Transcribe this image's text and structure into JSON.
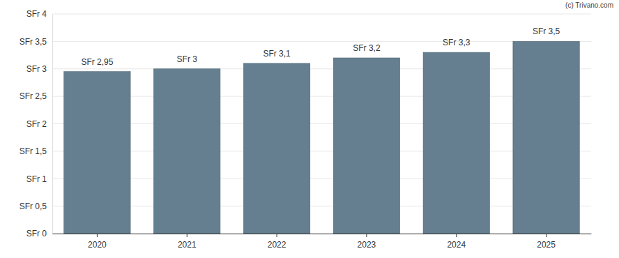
{
  "chart_data": {
    "type": "bar",
    "annotations": [
      "(c) Trivano.com"
    ],
    "categories": [
      "2020",
      "2021",
      "2022",
      "2023",
      "2024",
      "2025"
    ],
    "values": [
      2.95,
      3,
      3.1,
      3.2,
      3.3,
      3.5
    ],
    "value_labels": [
      "SFr 2,95",
      "SFr 3",
      "SFr 3,1",
      "SFr 3,2",
      "SFr 3,3",
      "SFr 3,5"
    ],
    "data_labels": true,
    "color": "#657f91",
    "ylim": [
      0,
      4
    ],
    "yticks": [
      {
        "value": 0,
        "label": "SFr 0"
      },
      {
        "value": 0.5,
        "label": "SFr 0,5"
      },
      {
        "value": 1,
        "label": "SFr 1"
      },
      {
        "value": 1.5,
        "label": "SFr 1,5"
      },
      {
        "value": 2,
        "label": "SFr 2"
      },
      {
        "value": 2.5,
        "label": "SFr 2,5"
      },
      {
        "value": 3,
        "label": "SFr 3"
      },
      {
        "value": 3.5,
        "label": "SFr 3,5"
      },
      {
        "value": 4,
        "label": "SFr 4"
      }
    ],
    "grid": true
  }
}
